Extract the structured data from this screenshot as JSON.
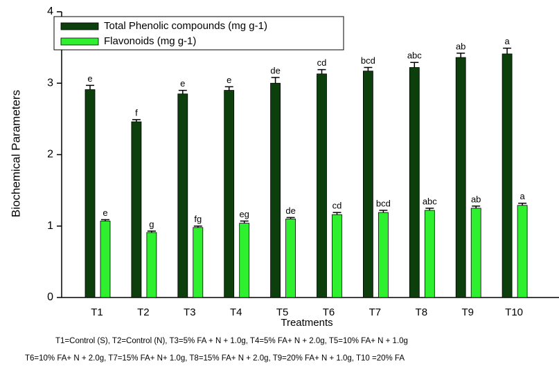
{
  "chart_data": {
    "type": "bar",
    "y_label": "Biochemical Parameters",
    "x_label": "Treatments",
    "categories": [
      "T1",
      "T2",
      "T3",
      "T4",
      "T5",
      "T6",
      "T7",
      "T8",
      "T9",
      "T10"
    ],
    "series": [
      {
        "name": "Total Phenolic compounds (mg g-1)",
        "color": "#0c3f0c",
        "values": [
          2.91,
          2.46,
          2.85,
          2.9,
          3.0,
          3.13,
          3.17,
          3.22,
          3.36,
          3.41
        ],
        "errors": [
          0.06,
          0.03,
          0.05,
          0.05,
          0.08,
          0.06,
          0.05,
          0.07,
          0.06,
          0.08
        ],
        "letters": [
          "e",
          "f",
          "e",
          "e",
          "de",
          "cd",
          "bcd",
          "abc",
          "ab",
          "a"
        ]
      },
      {
        "name": "Flavonoids (mg g-1)",
        "color": "#2ef02e",
        "values": [
          1.07,
          0.91,
          0.98,
          1.04,
          1.1,
          1.16,
          1.19,
          1.22,
          1.25,
          1.29
        ],
        "errors": [
          0.02,
          0.02,
          0.02,
          0.03,
          0.02,
          0.03,
          0.03,
          0.03,
          0.03,
          0.03
        ],
        "letters": [
          "e",
          "g",
          "fg",
          "eg",
          "de",
          "cd",
          "bcd",
          "abc",
          "ab",
          "a"
        ]
      }
    ],
    "ylim": [
      0,
      4
    ],
    "yticks": [
      0,
      1,
      2,
      3,
      4
    ],
    "footnote": [
      "T1=Control (S), T2=Control (N), T3=5% FA + N + 1.0g, T4=5% FA+ N + 2.0g, T5=10% FA+ N + 1.0g",
      "T6=10% FA+ N + 2.0g, T7=15% FA+ N+ 1.0g, T8=15% FA+ N + 2.0g, T9=20% FA+ N + 1.0g, T10 =20% FA"
    ]
  }
}
